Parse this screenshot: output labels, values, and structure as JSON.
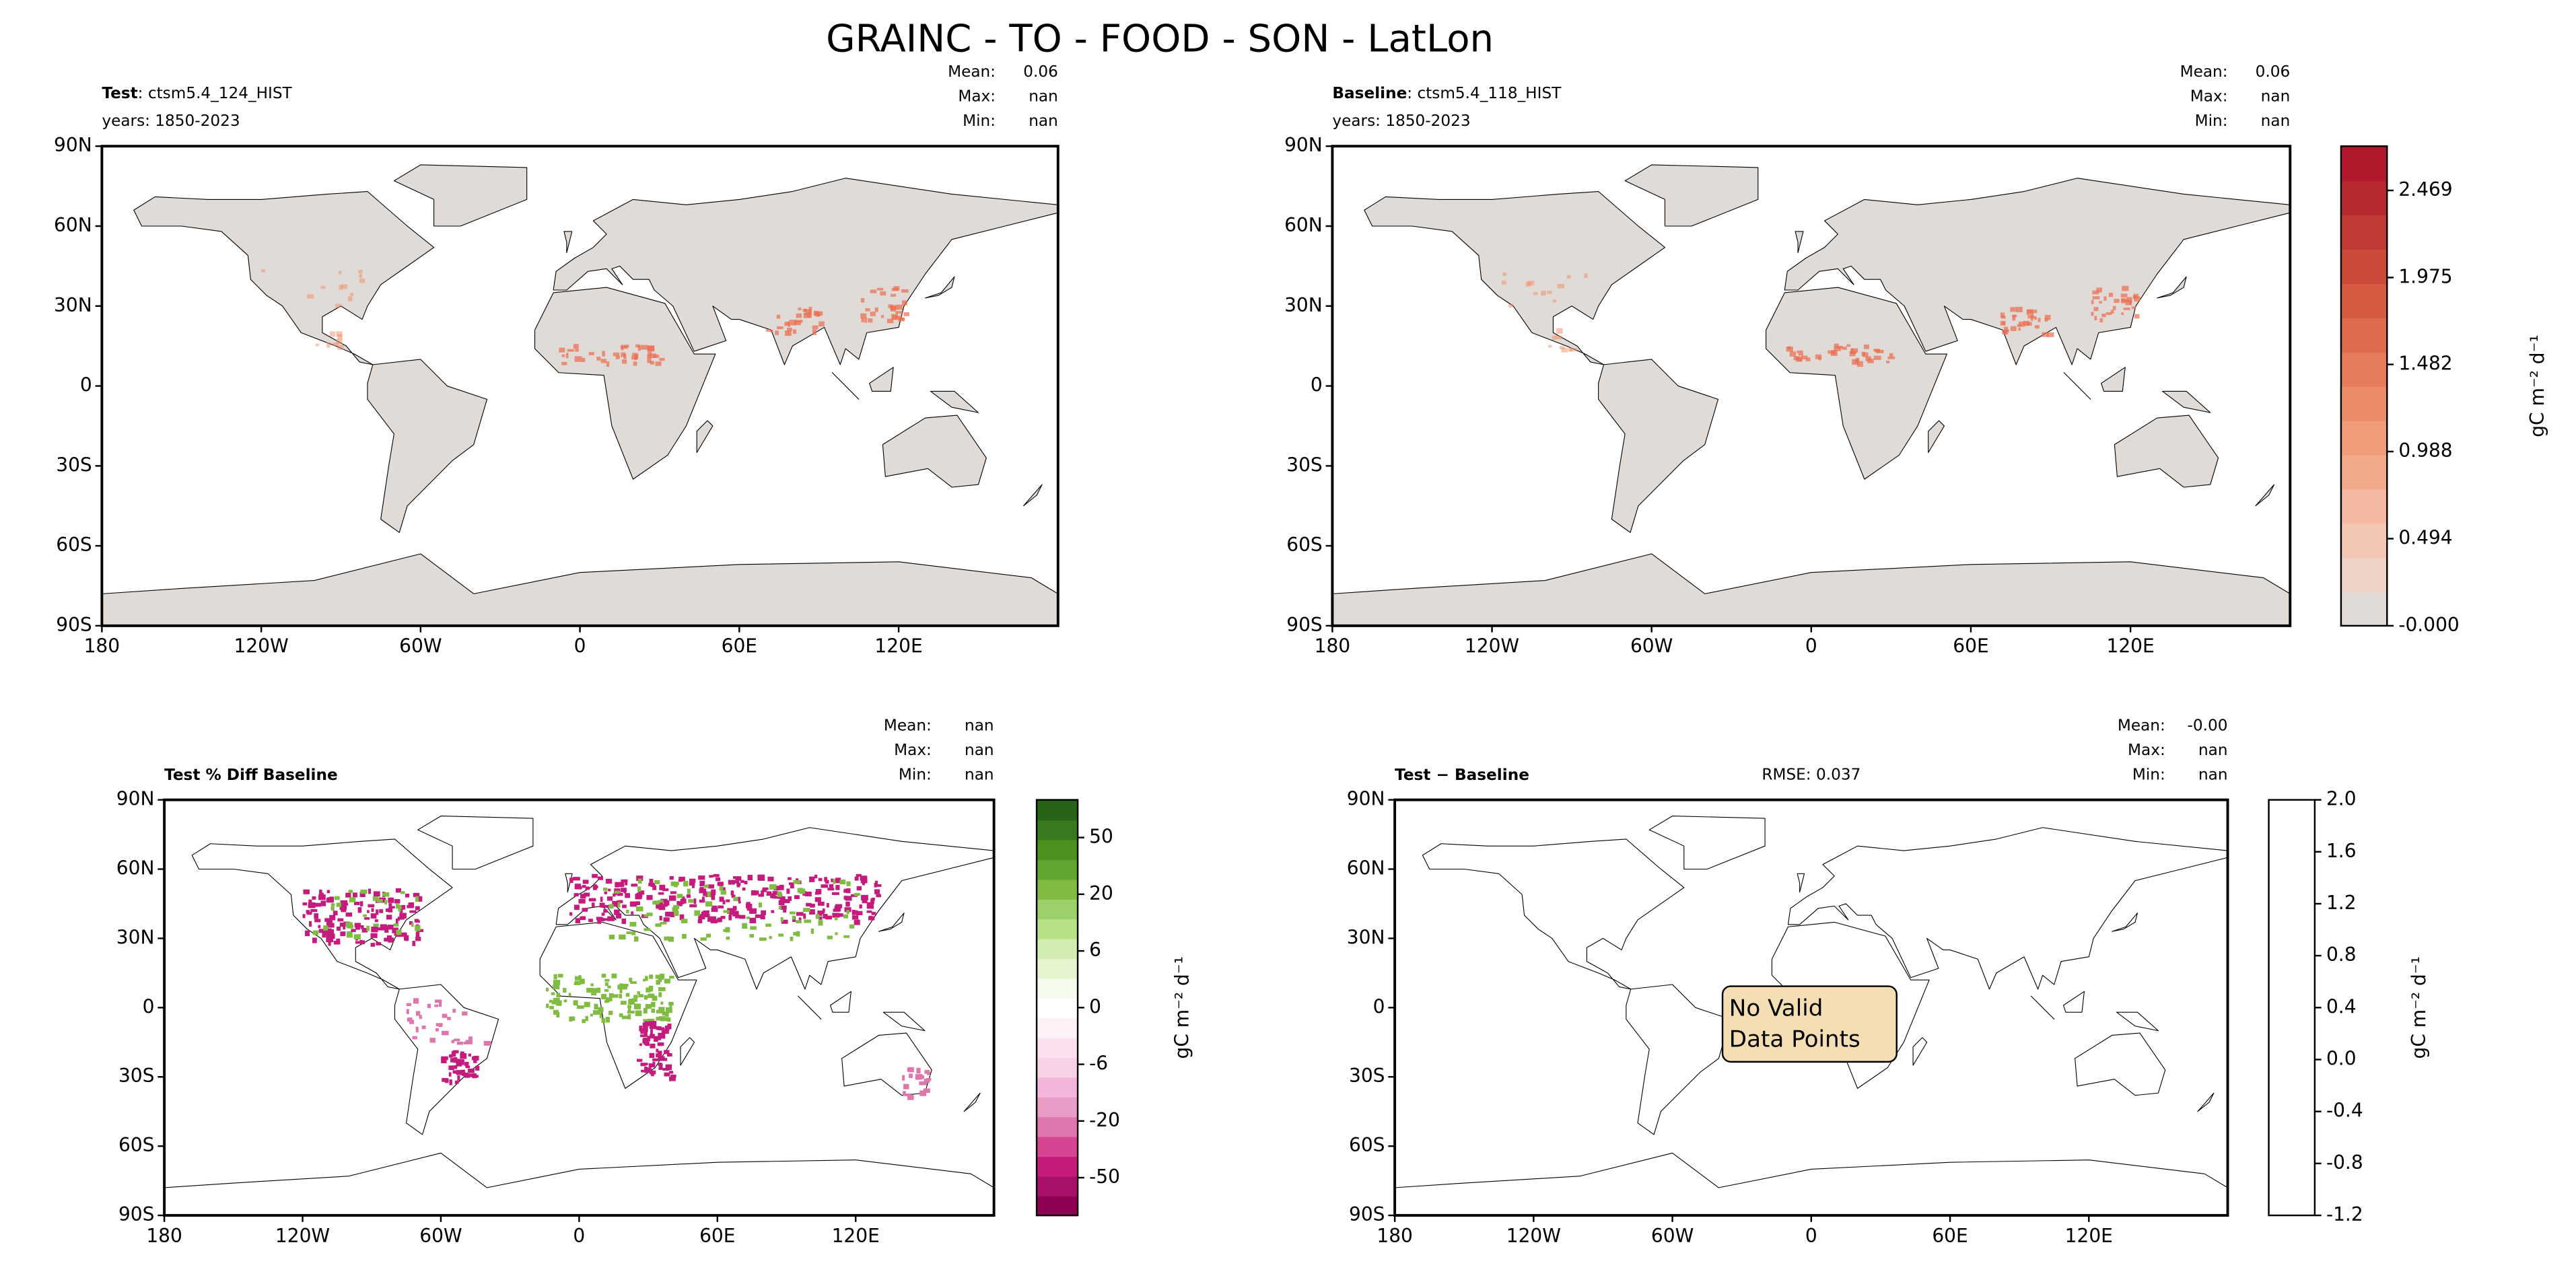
{
  "title": "GRAINC - TO - FOOD - SON - LatLon",
  "chart_data": [
    {
      "type": "map",
      "title_bold": "Test",
      "title": ": ctsm5.4_124_HIST",
      "subtitle": "years: 1850-2023",
      "stat_names": [
        "Mean:",
        "Max:",
        "Min:"
      ],
      "stat_values": [
        0.06,
        "nan",
        "nan"
      ],
      "land_color": "#e0dbd7",
      "xlim": [
        -180,
        180
      ],
      "ylim": [
        -90,
        90
      ],
      "xticks": [
        {
          "value": -180,
          "label": "180"
        },
        {
          "value": -120,
          "label": "120W"
        },
        {
          "value": -60,
          "label": "60W"
        },
        0,
        {
          "value": 60,
          "label": "60E"
        },
        {
          "value": 120,
          "label": "120E"
        }
      ],
      "yticks": [
        {
          "value": 90,
          "label": "90N"
        },
        {
          "value": 60,
          "label": "60N"
        },
        {
          "value": 30,
          "label": "30N"
        },
        0,
        {
          "value": -30,
          "label": "30S"
        },
        {
          "value": -60,
          "label": "60S"
        },
        {
          "value": -90,
          "label": "90S"
        }
      ]
    },
    {
      "type": "map",
      "title_bold": "Baseline",
      "title": ": ctsm5.4_118_HIST",
      "subtitle": "years: 1850-2023",
      "stat_names": [
        "Mean:",
        "Max:",
        "Min:"
      ],
      "stat_values": [
        0.06,
        "nan",
        "nan"
      ],
      "land_color": "#e0dbd7",
      "xlim": [
        -180,
        180
      ],
      "ylim": [
        -90,
        90
      ],
      "xticks": [
        {
          "value": -180,
          "label": "180"
        },
        {
          "value": -120,
          "label": "120W"
        },
        {
          "value": -60,
          "label": "60W"
        },
        0,
        {
          "value": 60,
          "label": "60E"
        },
        {
          "value": 120,
          "label": "120E"
        }
      ],
      "yticks": [
        {
          "value": 90,
          "label": "90N"
        },
        {
          "value": 60,
          "label": "60N"
        },
        {
          "value": 30,
          "label": "30N"
        },
        0,
        {
          "value": -30,
          "label": "30S"
        },
        {
          "value": -60,
          "label": "60S"
        },
        {
          "value": -90,
          "label": "90S"
        }
      ],
      "colorbar": {
        "label": "gC m⁻² d⁻¹",
        "lim": [
          0,
          2.72
        ],
        "ticks": [
          {
            "value": 0,
            "label": "-0.000"
          },
          0.494,
          0.988,
          1.482,
          1.975,
          2.469
        ],
        "colors": [
          "#e0dbd7",
          "#eed3c6",
          "#f4c7b3",
          "#f4b9a0",
          "#f3aa8c",
          "#f09b7a",
          "#ec8b69",
          "#e67b5a",
          "#df6b4d",
          "#d65a42",
          "#cc4a3a",
          "#c23a34",
          "#b92a2f",
          "#b2182b"
        ]
      }
    },
    {
      "type": "map",
      "title_bold": "Test % Diff Baseline",
      "stat_names": [
        "Mean:",
        "Max:",
        "Min:"
      ],
      "stat_values": [
        "nan",
        "nan",
        "nan"
      ],
      "land_color": "#ffffff",
      "xlim": [
        -180,
        180
      ],
      "ylim": [
        -90,
        90
      ],
      "xticks": [
        {
          "value": -180,
          "label": "180"
        },
        {
          "value": -120,
          "label": "120W"
        },
        {
          "value": -60,
          "label": "60W"
        },
        0,
        {
          "value": 60,
          "label": "60E"
        },
        {
          "value": 120,
          "label": "120E"
        }
      ],
      "yticks": [
        {
          "value": 90,
          "label": "90N"
        },
        {
          "value": 60,
          "label": "60N"
        },
        {
          "value": 30,
          "label": "30N"
        },
        0,
        {
          "value": -30,
          "label": "30S"
        },
        {
          "value": -60,
          "label": "60S"
        },
        {
          "value": -90,
          "label": "90S"
        }
      ],
      "colorbar": {
        "label": "gC m⁻² d⁻¹",
        "norm": "boundary",
        "ticks": [
          -50,
          -20,
          -6,
          0,
          6,
          20,
          50
        ],
        "colors": [
          "#8e0152",
          "#a8106a",
          "#c51b7d",
          "#d54592",
          "#de77ae",
          "#e99cc5",
          "#f1b6da",
          "#f8d3e8",
          "#fde0ef",
          "#fdf0f6",
          "#ffffff",
          "#f4faec",
          "#e6f5d0",
          "#d3ecb1",
          "#b8e186",
          "#9dd06a",
          "#7fbc41",
          "#5fa52f",
          "#4d9221",
          "#387a1d",
          "#276419"
        ]
      }
    },
    {
      "type": "map",
      "title_bold": "Test − Baseline",
      "rmse": "RMSE: 0.037",
      "stat_names": [
        "Mean:",
        "Max:",
        "Min:"
      ],
      "stat_values": [
        "-0.00",
        "nan",
        "nan"
      ],
      "land_color": "#ffffff",
      "annotation": [
        "No Valid",
        "Data Points"
      ],
      "xlim": [
        -180,
        180
      ],
      "ylim": [
        -90,
        90
      ],
      "xticks": [
        {
          "value": -180,
          "label": "180"
        },
        {
          "value": -120,
          "label": "120W"
        },
        {
          "value": -60,
          "label": "60W"
        },
        0,
        {
          "value": 60,
          "label": "60E"
        },
        {
          "value": 120,
          "label": "120E"
        }
      ],
      "yticks": [
        {
          "value": 90,
          "label": "90N"
        },
        {
          "value": 60,
          "label": "60N"
        },
        {
          "value": 30,
          "label": "30N"
        },
        0,
        {
          "value": -30,
          "label": "30S"
        },
        {
          "value": -60,
          "label": "60S"
        },
        {
          "value": -90,
          "label": "90S"
        }
      ],
      "colorbar": {
        "label": "gC m⁻² d⁻¹",
        "lim": [
          -1.2,
          2.0
        ],
        "ticks": [
          {
            "value": -1.2,
            "label": "-1.2"
          },
          -0.8,
          -0.4,
          {
            "value": 0,
            "label": "0.0"
          },
          0.4,
          0.8,
          1.2,
          1.6,
          {
            "value": 2,
            "label": "2.0"
          }
        ],
        "colors": [
          "#ffffff"
        ]
      }
    }
  ]
}
